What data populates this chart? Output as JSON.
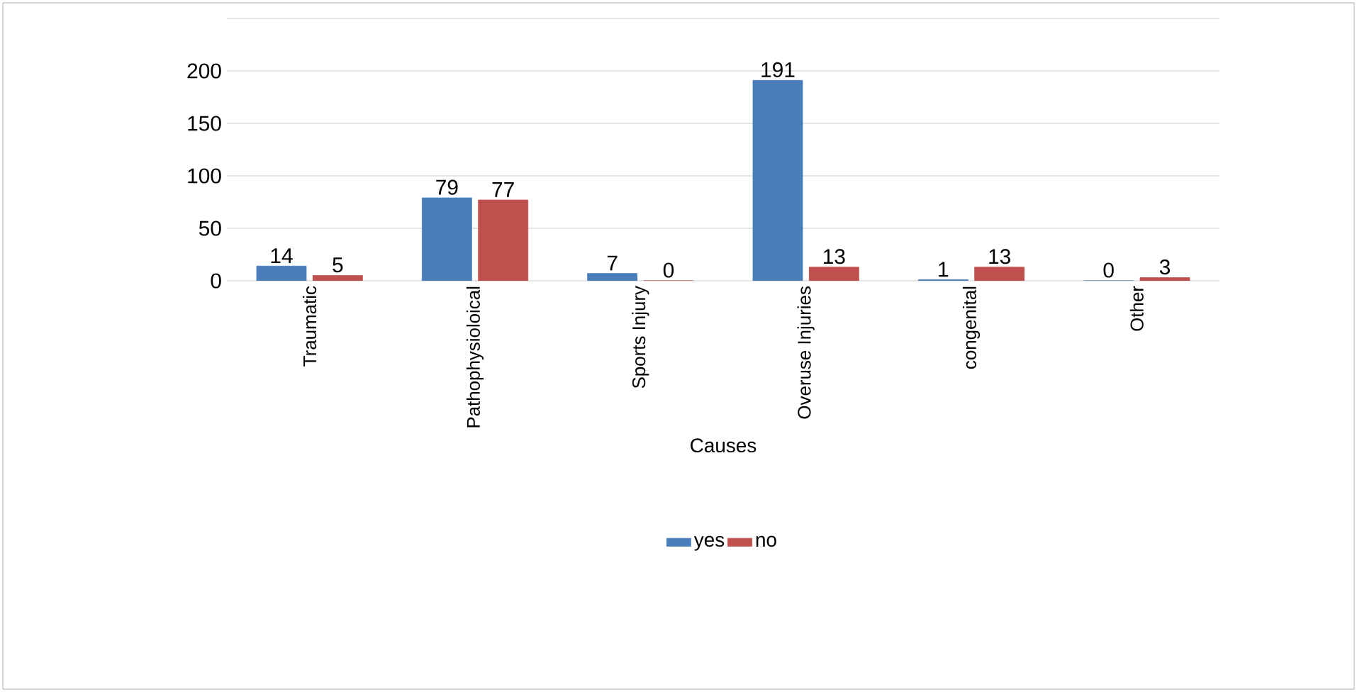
{
  "chart_data": {
    "type": "bar",
    "xlabel": "Causes",
    "categories": [
      "Traumatic",
      "Pathophysioloical",
      "Sports Injury",
      "Overuse Injuries",
      "congenital",
      "Other"
    ],
    "series": [
      {
        "name": "yes",
        "color": "#4a7ebb",
        "values": [
          14,
          79,
          7,
          191,
          1,
          0
        ]
      },
      {
        "name": "no",
        "color": "#c0504d",
        "values": [
          5,
          77,
          0,
          13,
          13,
          3
        ]
      }
    ],
    "ylim": [
      0,
      250
    ],
    "yticks": [
      0,
      50,
      100,
      150,
      200,
      {
        "value": 250,
        "label": null
      }
    ],
    "grid": "y",
    "legend": "bottom",
    "data_labels": true
  }
}
